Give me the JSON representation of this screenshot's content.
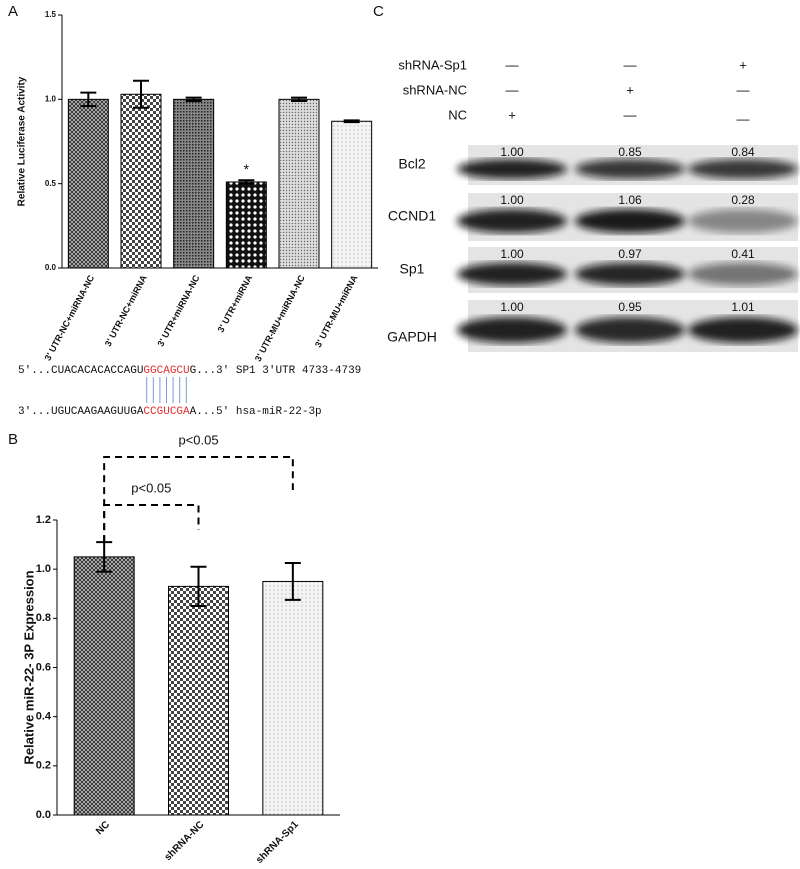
{
  "panels": [
    "A",
    "B",
    "C"
  ],
  "chart_data": [
    {
      "type": "bar",
      "y_label": "Relative Luciferase Activity",
      "categories": [
        "3' UTR-NC+miRNA-NC",
        "3' UTR-NC+miRNA",
        "3' UTR+miRNA-NC",
        "3' UTR+miRNA",
        "3' UTR-MU+miRNA-NC",
        "3' UTR-MU+miRNA"
      ],
      "values": [
        1.0,
        1.03,
        1.0,
        0.51,
        1.0,
        0.87
      ],
      "errors": [
        0.04,
        0.08,
        0.01,
        0.01,
        0.01,
        0.005
      ],
      "annotations": [
        null,
        null,
        null,
        "*",
        null,
        null
      ],
      "ylim": [
        0,
        1.5
      ],
      "yticks": [
        {
          "value": 0,
          "label": "0.0"
        },
        {
          "value": 0.5,
          "label": "0.5"
        },
        {
          "value": 1,
          "label": "1.0"
        },
        {
          "value": 1.5,
          "label": "1.5"
        }
      ]
    },
    {
      "type": "bar",
      "y_label": "Relative  miR-22- 3P  Expression",
      "categories": [
        "NC",
        "shRNA-NC",
        "shRNA-Sp1"
      ],
      "values": [
        1.05,
        0.93,
        0.95
      ],
      "errors": [
        0.06,
        0.08,
        0.075
      ],
      "comparisons": [
        {
          "label": "p<0.05",
          "from": "NC",
          "to": "shRNA-NC"
        },
        {
          "label": "p<0.05",
          "from": "NC",
          "to": "shRNA-Sp1"
        }
      ],
      "ylim": [
        0,
        1.2
      ],
      "yticks": [
        {
          "value": 0,
          "label": "0.0"
        },
        {
          "value": 0.2,
          "label": "0.2"
        },
        {
          "value": 0.4,
          "label": "0.4"
        },
        {
          "value": 0.6,
          "label": "0.6"
        },
        {
          "value": 0.8,
          "label": "0.8"
        },
        {
          "value": 1,
          "label": "1.0"
        },
        {
          "value": 1.2,
          "label": "1.2"
        }
      ]
    }
  ],
  "sequence": {
    "top": [
      "5'...CUACACACACCAGU",
      "GGCAGCU",
      "G...3'  SP1 3'UTR 4733-4739"
    ],
    "bottom": [
      "3'...UGUCAAGAAGUUGA",
      "CCGUCGA",
      "A...5'  hsa-miR-22-3p"
    ]
  },
  "blot": {
    "conditions": [
      {
        "name": "shRNA-Sp1",
        "marks": [
          "—",
          "—",
          "+"
        ]
      },
      {
        "name": "shRNA-NC",
        "marks": [
          "—",
          "+",
          "—"
        ]
      },
      {
        "name": "NC",
        "marks": [
          "+",
          "—",
          "—"
        ]
      }
    ],
    "bands": [
      {
        "name": "Bcl2",
        "values": [
          "1.00",
          "0.85",
          "0.84"
        ]
      },
      {
        "name": "CCND1",
        "values": [
          "1.00",
          "1.06",
          "0.28"
        ]
      },
      {
        "name": "Sp1",
        "values": [
          "1.00",
          "0.97",
          "0.41"
        ]
      },
      {
        "name": "GAPDH",
        "values": [
          "1.00",
          "0.95",
          "1.01"
        ]
      }
    ]
  }
}
